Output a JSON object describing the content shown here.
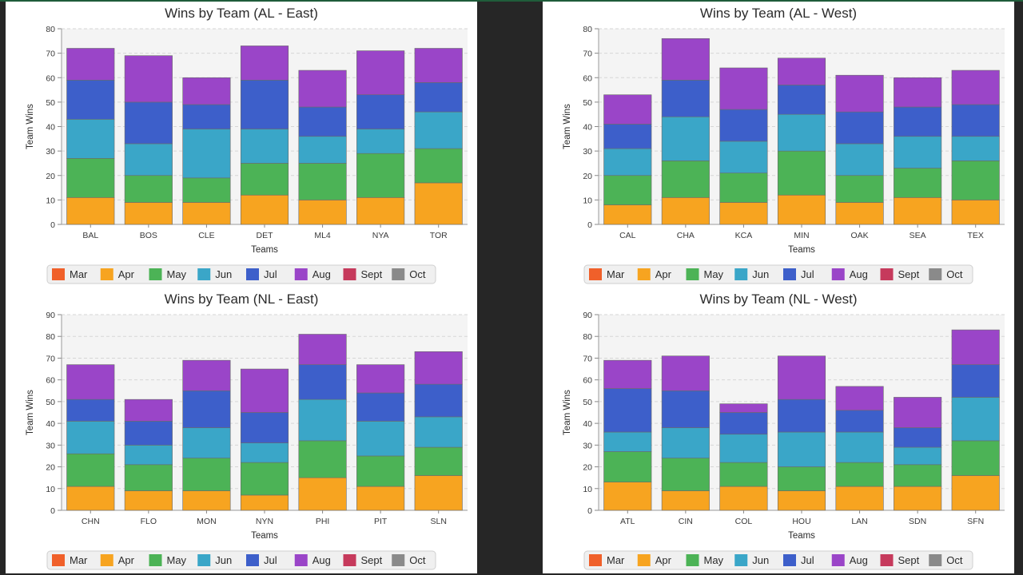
{
  "colors": {
    "Mar": "#f0602a",
    "Apr": "#f7a420",
    "May": "#4cb356",
    "Jun": "#3aa6c8",
    "Jul": "#3d5fca",
    "Aug": "#9a45c8",
    "Sept": "#c63a5c",
    "Oct": "#8a8a8a"
  },
  "legend": [
    "Mar",
    "Apr",
    "May",
    "Jun",
    "Jul",
    "Aug",
    "Sept",
    "Oct"
  ],
  "chart_data": [
    {
      "type": "bar",
      "stacked": true,
      "title": "Wins by Team (AL - East)",
      "xlabel": "Teams",
      "ylabel": "Team Wins",
      "ylim": [
        0,
        80
      ],
      "yticks": [
        0,
        10,
        20,
        30,
        40,
        50,
        60,
        70,
        80
      ],
      "grid": true,
      "legend_position": "bottom",
      "categories": [
        "BAL",
        "BOS",
        "CLE",
        "DET",
        "ML4",
        "NYA",
        "TOR"
      ],
      "series": [
        {
          "name": "Mar",
          "values": [
            0,
            0,
            0,
            0,
            0,
            0,
            0
          ]
        },
        {
          "name": "Apr",
          "values": [
            11,
            9,
            9,
            12,
            10,
            11,
            17
          ]
        },
        {
          "name": "May",
          "values": [
            16,
            11,
            10,
            13,
            15,
            18,
            14
          ]
        },
        {
          "name": "Jun",
          "values": [
            16,
            13,
            20,
            14,
            11,
            10,
            15
          ]
        },
        {
          "name": "Jul",
          "values": [
            16,
            17,
            10,
            20,
            12,
            14,
            12
          ]
        },
        {
          "name": "Aug",
          "values": [
            13,
            19,
            11,
            14,
            15,
            18,
            14
          ]
        },
        {
          "name": "Sept",
          "values": [
            0,
            0,
            0,
            0,
            0,
            0,
            0
          ]
        },
        {
          "name": "Oct",
          "values": [
            0,
            0,
            0,
            0,
            0,
            0,
            0
          ]
        }
      ]
    },
    {
      "type": "bar",
      "stacked": true,
      "title": "Wins by Team (AL - West)",
      "xlabel": "Teams",
      "ylabel": "Team Wins",
      "ylim": [
        0,
        80
      ],
      "yticks": [
        0,
        10,
        20,
        30,
        40,
        50,
        60,
        70,
        80
      ],
      "grid": true,
      "legend_position": "bottom",
      "categories": [
        "CAL",
        "CHA",
        "KCA",
        "MIN",
        "OAK",
        "SEA",
        "TEX"
      ],
      "series": [
        {
          "name": "Mar",
          "values": [
            0,
            0,
            0,
            0,
            0,
            0,
            0
          ]
        },
        {
          "name": "Apr",
          "values": [
            8,
            11,
            9,
            12,
            9,
            11,
            10
          ]
        },
        {
          "name": "May",
          "values": [
            12,
            15,
            12,
            18,
            11,
            12,
            16
          ]
        },
        {
          "name": "Jun",
          "values": [
            11,
            18,
            13,
            15,
            13,
            13,
            10
          ]
        },
        {
          "name": "Jul",
          "values": [
            10,
            15,
            13,
            12,
            13,
            12,
            13
          ]
        },
        {
          "name": "Aug",
          "values": [
            12,
            17,
            17,
            11,
            15,
            12,
            14
          ]
        },
        {
          "name": "Sept",
          "values": [
            0,
            0,
            0,
            0,
            0,
            0,
            0
          ]
        },
        {
          "name": "Oct",
          "values": [
            0,
            0,
            0,
            0,
            0,
            0,
            0
          ]
        }
      ]
    },
    {
      "type": "bar",
      "stacked": true,
      "title": "Wins by Team (NL - East)",
      "xlabel": "Teams",
      "ylabel": "Team Wins",
      "ylim": [
        0,
        90
      ],
      "yticks": [
        0,
        10,
        20,
        30,
        40,
        50,
        60,
        70,
        80,
        90
      ],
      "grid": true,
      "legend_position": "bottom",
      "categories": [
        "CHN",
        "FLO",
        "MON",
        "NYN",
        "PHI",
        "PIT",
        "SLN"
      ],
      "series": [
        {
          "name": "Mar",
          "values": [
            0,
            0,
            0,
            0,
            0,
            0,
            0
          ]
        },
        {
          "name": "Apr",
          "values": [
            11,
            9,
            9,
            7,
            15,
            11,
            16
          ]
        },
        {
          "name": "May",
          "values": [
            15,
            12,
            15,
            15,
            17,
            14,
            13
          ]
        },
        {
          "name": "Jun",
          "values": [
            15,
            9,
            14,
            9,
            19,
            16,
            14
          ]
        },
        {
          "name": "Jul",
          "values": [
            10,
            11,
            17,
            14,
            16,
            13,
            15
          ]
        },
        {
          "name": "Aug",
          "values": [
            16,
            10,
            14,
            20,
            14,
            13,
            15
          ]
        },
        {
          "name": "Sept",
          "values": [
            0,
            0,
            0,
            0,
            0,
            0,
            0
          ]
        },
        {
          "name": "Oct",
          "values": [
            0,
            0,
            0,
            0,
            0,
            0,
            0
          ]
        }
      ]
    },
    {
      "type": "bar",
      "stacked": true,
      "title": "Wins by Team (NL - West)",
      "xlabel": "Teams",
      "ylabel": "Team Wins",
      "ylim": [
        0,
        90
      ],
      "yticks": [
        0,
        10,
        20,
        30,
        40,
        50,
        60,
        70,
        80,
        90
      ],
      "grid": true,
      "legend_position": "bottom",
      "categories": [
        "ATL",
        "CIN",
        "COL",
        "HOU",
        "LAN",
        "SDN",
        "SFN"
      ],
      "series": [
        {
          "name": "Mar",
          "values": [
            0,
            0,
            0,
            0,
            0,
            0,
            0
          ]
        },
        {
          "name": "Apr",
          "values": [
            13,
            9,
            11,
            9,
            11,
            11,
            16
          ]
        },
        {
          "name": "May",
          "values": [
            14,
            15,
            11,
            11,
            11,
            10,
            16
          ]
        },
        {
          "name": "Jun",
          "values": [
            9,
            14,
            13,
            16,
            14,
            8,
            20
          ]
        },
        {
          "name": "Jul",
          "values": [
            20,
            17,
            10,
            15,
            10,
            9,
            15
          ]
        },
        {
          "name": "Aug",
          "values": [
            13,
            16,
            4,
            20,
            11,
            14,
            16
          ]
        },
        {
          "name": "Sept",
          "values": [
            0,
            0,
            0,
            0,
            0,
            0,
            0
          ]
        },
        {
          "name": "Oct",
          "values": [
            0,
            0,
            0,
            0,
            0,
            0,
            0
          ]
        }
      ]
    }
  ]
}
